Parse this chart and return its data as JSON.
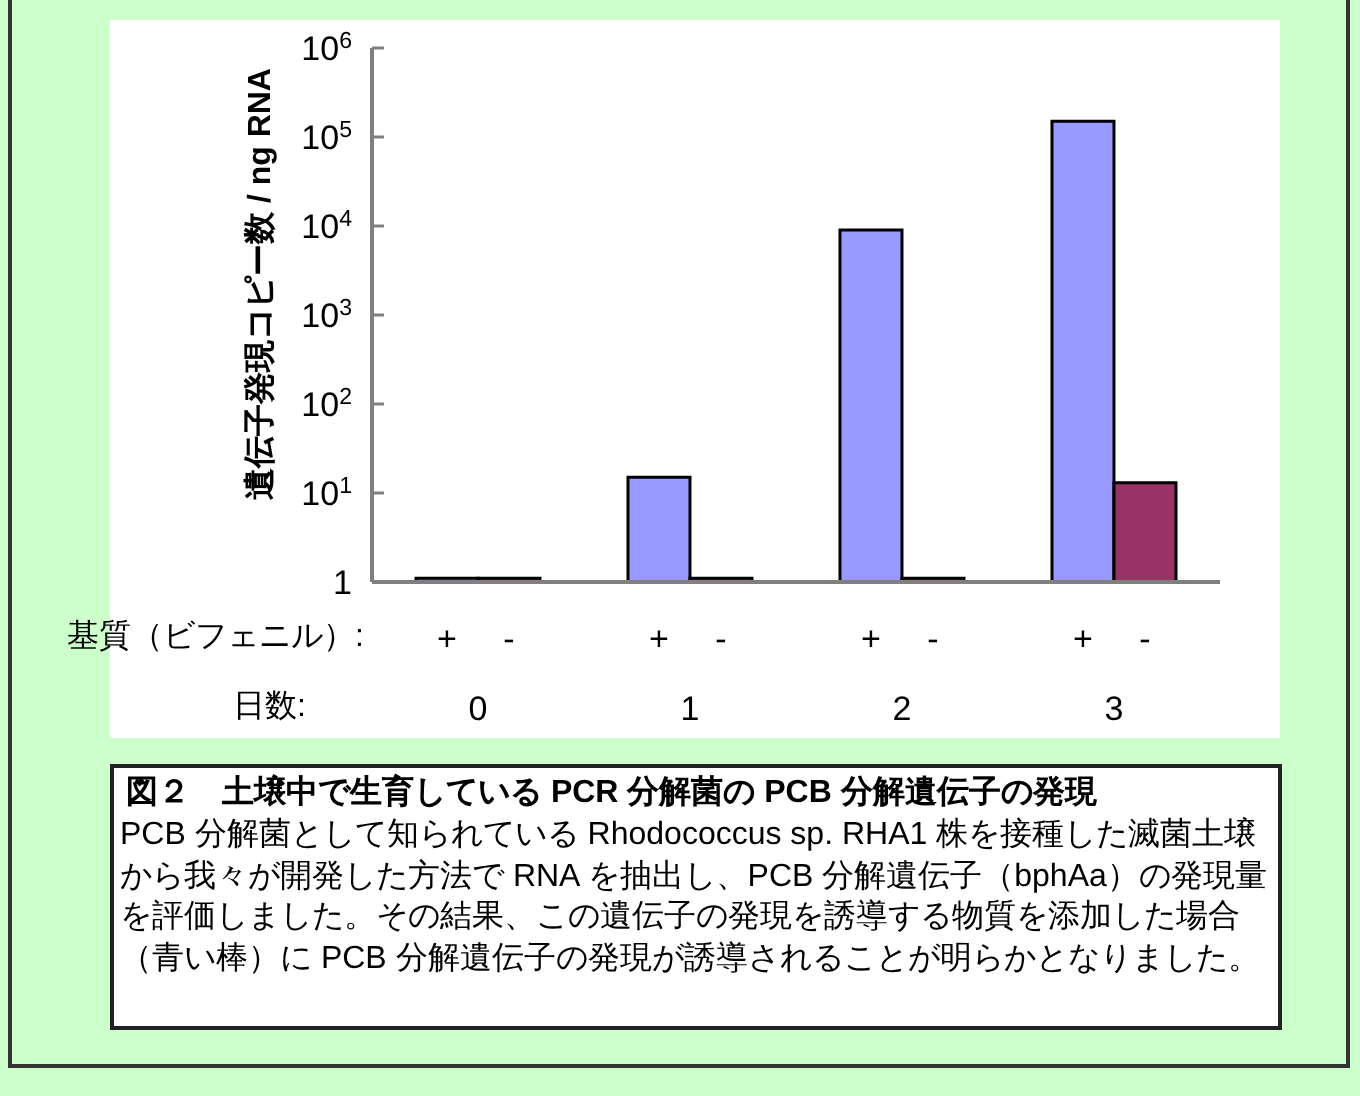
{
  "chart_data": {
    "type": "bar",
    "title": "図２　土壌中で生育している PCR 分解菌の PCB 分解遺伝子の発現",
    "annotations": [
      "PCB 分解菌として知られている Rhodococcus sp. RHA1 株を接種した滅菌土壌から我々が開発した方法で RNA を抽出し、PCB 分解遺伝子（bphAa）の発現量を評価しました。その結果、この遺伝子の発現を誘導する物質を添加した場合（青い棒）に PCB 分解遺伝子の発現が誘導されることが明らかとなりました。"
    ],
    "ylabel": "遺伝子発現コピー数 / ng RNA",
    "xlabel": "日数:",
    "legend_title": "基質（ビフェニル）:",
    "categories": [
      "0",
      "1",
      "2",
      "3"
    ],
    "series": [
      {
        "name": "+",
        "color": "#9999ff",
        "values": [
          1.1,
          15,
          9000,
          150000
        ]
      },
      {
        "name": "-",
        "color": "#993366",
        "values": [
          1.1,
          1.1,
          1.1,
          13
        ]
      }
    ],
    "log": true,
    "ylim": [
      1,
      1000000
    ],
    "yticks": [
      1,
      {
        "value": 10,
        "label": "10$^{1}$"
      },
      {
        "value": 100,
        "label": "10$^{2}$"
      },
      {
        "value": 1000,
        "label": "10$^{3}$"
      },
      {
        "value": 10000,
        "label": "10$^{4}$"
      },
      {
        "value": 100000,
        "label": "10$^{5}$"
      },
      {
        "value": 1000000,
        "label": "10$^{6}$"
      }
    ]
  }
}
